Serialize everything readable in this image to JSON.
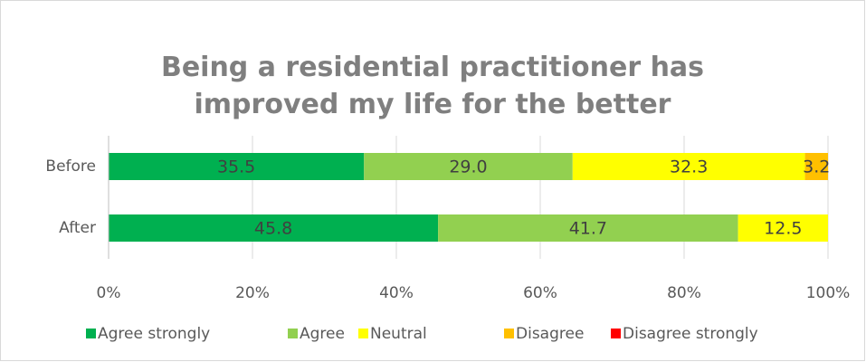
{
  "chart_data": {
    "type": "bar",
    "orientation": "horizontal",
    "stacked": true,
    "title": "Being a residential practitioner has improved my life for the better",
    "categories": [
      "Before",
      "After"
    ],
    "series": [
      {
        "name": "Agree strongly",
        "color": "#00b050",
        "values": [
          35.5,
          45.8
        ]
      },
      {
        "name": "Agree",
        "color": "#92d050",
        "values": [
          29.0,
          41.7
        ],
        "value_labels": [
          "29.0",
          "41.7"
        ]
      },
      {
        "name": "Neutral",
        "color": "#ffff00",
        "values": [
          32.3,
          12.5
        ]
      },
      {
        "name": "Disagree",
        "color": "#ffc000",
        "values": [
          3.2,
          null
        ]
      },
      {
        "name": "Disagree strongly",
        "color": "#ff0000",
        "values": [
          null,
          null
        ]
      }
    ],
    "xlim": [
      0,
      100
    ],
    "xticks": [
      {
        "value": 0,
        "label": "0%"
      },
      {
        "value": 20,
        "label": "20%"
      },
      {
        "value": 40,
        "label": "40%"
      },
      {
        "value": 60,
        "label": "60%"
      },
      {
        "value": 80,
        "label": "80%"
      },
      {
        "value": 100,
        "label": "100%"
      }
    ],
    "grid": true,
    "legend": "bottom"
  }
}
